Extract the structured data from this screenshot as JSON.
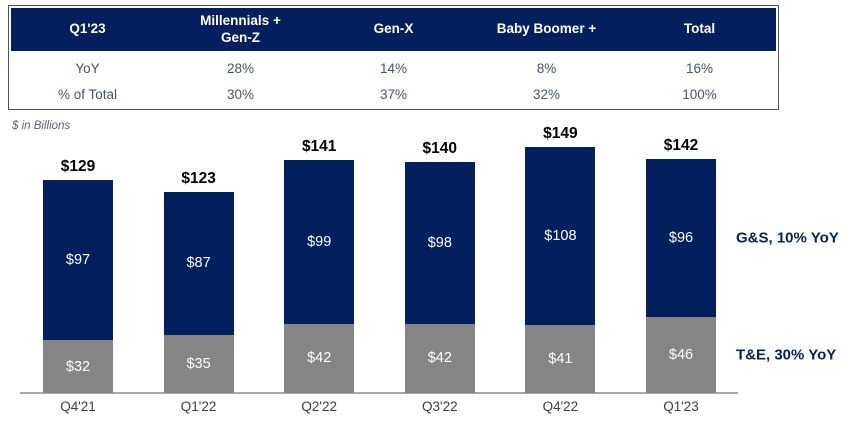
{
  "table": {
    "columns": [
      "Q1'23",
      "Millennials +\nGen-Z",
      "Gen-X",
      "Baby Boomer +",
      "Total"
    ],
    "rows": [
      {
        "label": "YoY",
        "values": [
          "28%",
          "14%",
          "8%",
          "16%"
        ]
      },
      {
        "label": "% of Total",
        "values": [
          "30%",
          "37%",
          "32%",
          "100%"
        ]
      }
    ]
  },
  "chart_data": {
    "type": "bar",
    "stacked": true,
    "unit_label": "$ in Billions",
    "value_prefix": "$",
    "categories": [
      "Q4'21",
      "Q1'22",
      "Q2'22",
      "Q3'22",
      "Q4'22",
      "Q1'23"
    ],
    "series": [
      {
        "name": "T&E",
        "color": "#858585",
        "values": [
          32,
          35,
          42,
          42,
          41,
          46
        ]
      },
      {
        "name": "G&S",
        "color": "#041f5e",
        "values": [
          97,
          87,
          99,
          98,
          108,
          96
        ]
      }
    ],
    "totals": [
      129,
      123,
      141,
      140,
      149,
      142
    ],
    "annotations": [
      {
        "series": "G&S",
        "label": "G&S, 10% YoY"
      },
      {
        "series": "T&E",
        "label": "T&E, 30% YoY"
      }
    ],
    "legend_position": "right",
    "grid": false,
    "ylim": [
      0,
      160
    ]
  },
  "colors": {
    "navy": "#041f5e",
    "gray": "#858585",
    "table_border": "#4d525a",
    "body_text": "#44546a",
    "axis": "#a8a8a8"
  }
}
